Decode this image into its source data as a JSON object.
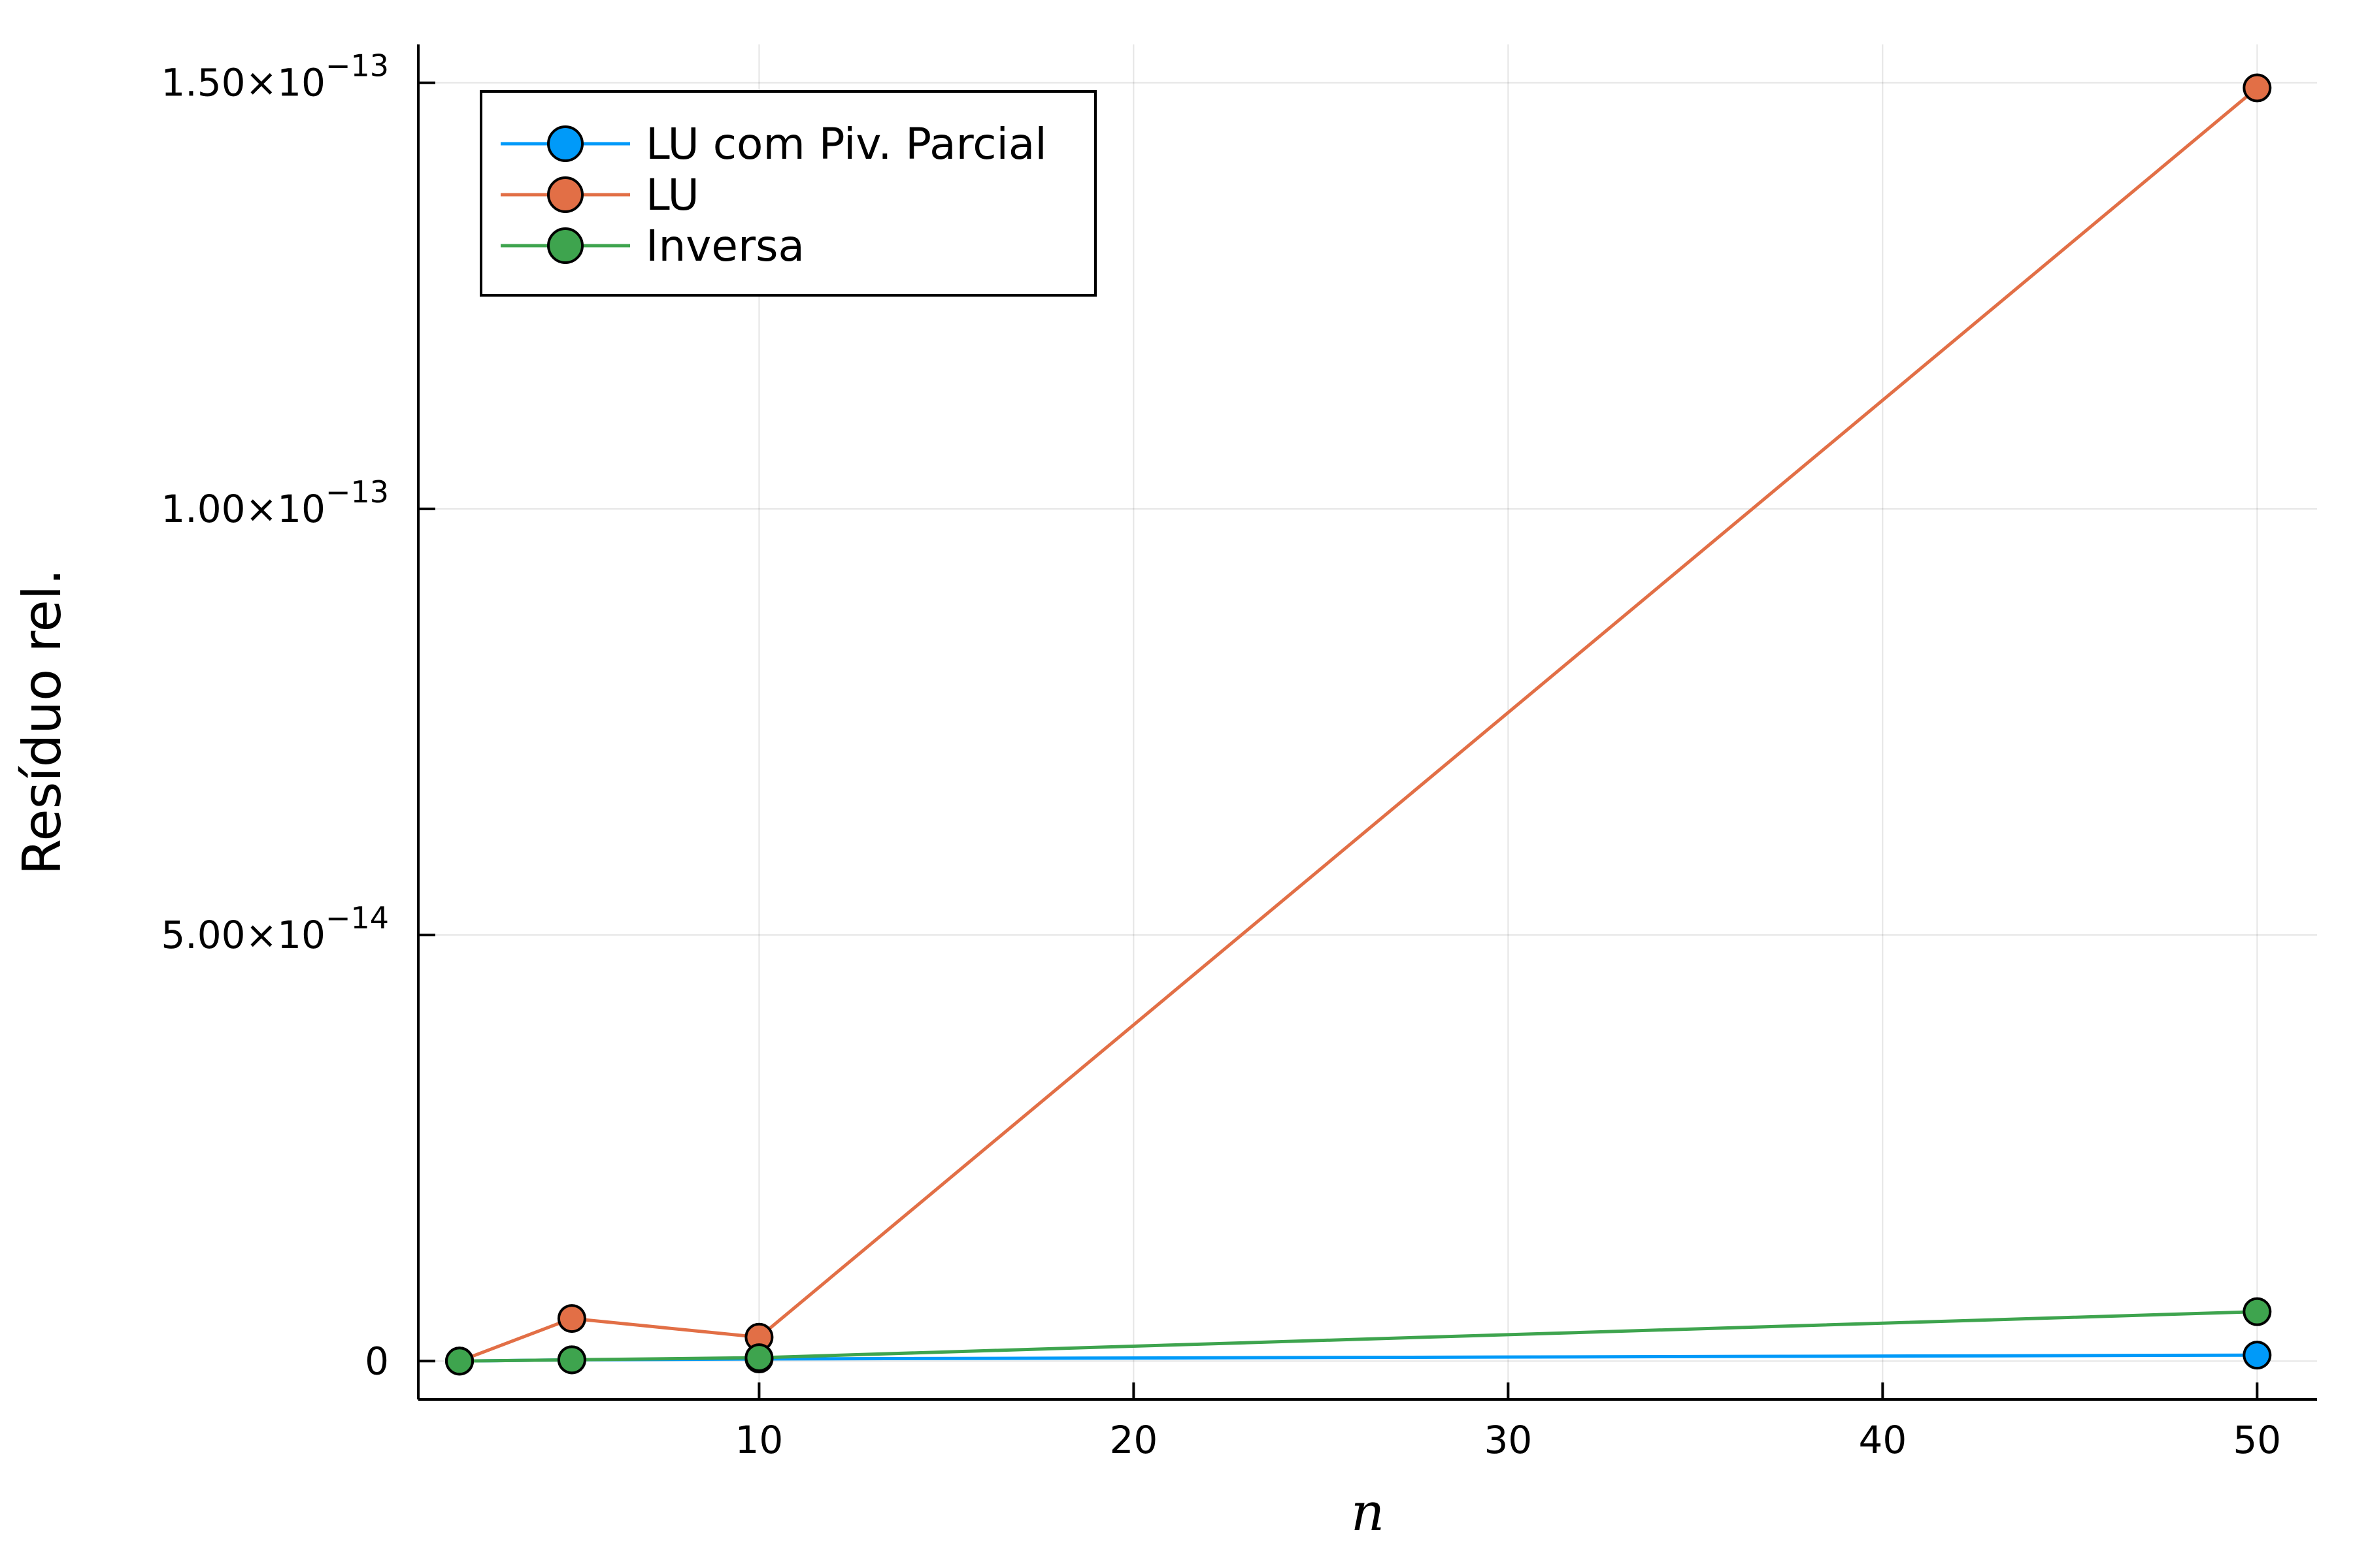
{
  "chart_data": {
    "type": "line",
    "xlabel": "n",
    "ylabel": "Resíduo rel.",
    "xlim": [
      0.9,
      51.6
    ],
    "ylim": [
      -4.5e-15,
      1.545e-13
    ],
    "xticks": [
      10,
      20,
      30,
      40,
      50
    ],
    "xtick_labels": [
      "10",
      "20",
      "30",
      "40",
      "50"
    ],
    "yticks": [
      {
        "value": 0,
        "mantissa": "0",
        "exponent": ""
      },
      {
        "value": 5e-14,
        "mantissa": "5.00×10",
        "exponent": "−14"
      },
      {
        "value": 1e-13,
        "mantissa": "1.00×10",
        "exponent": "−13"
      },
      {
        "value": 1.5e-13,
        "mantissa": "1.50×10",
        "exponent": "−13"
      }
    ],
    "grid": true,
    "legend_position": "top-left",
    "x": [
      2,
      5,
      10,
      50
    ],
    "series": [
      {
        "name": "LU com Piv. Parcial",
        "color": "#009af9",
        "values": [
          0,
          1.5e-16,
          2.5e-16,
          7e-16
        ]
      },
      {
        "name": "LU",
        "color": "#e26f46",
        "values": [
          0,
          5e-15,
          2.8e-15,
          1.494e-13
        ]
      },
      {
        "name": "Inversa",
        "color": "#3ea44e",
        "values": [
          0,
          1.5e-16,
          4e-16,
          5.8e-15
        ]
      }
    ]
  }
}
